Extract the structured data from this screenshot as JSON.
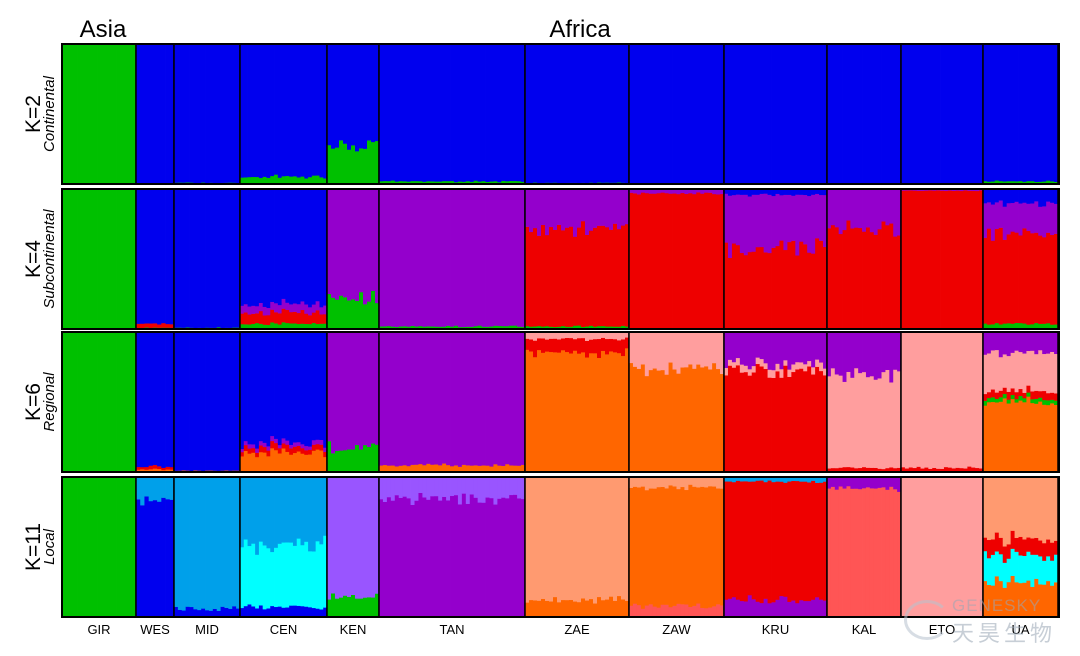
{
  "chart_data": {
    "type": "bar",
    "subtype": "stacked-admixture",
    "region_labels": [
      "Asia",
      "Africa"
    ],
    "populations": [
      {
        "name": "GIR",
        "n": 19
      },
      {
        "name": "WES",
        "n": 9
      },
      {
        "name": "MID",
        "n": 17
      },
      {
        "name": "CEN",
        "n": 23
      },
      {
        "name": "KEN",
        "n": 13
      },
      {
        "name": "TAN",
        "n": 37
      },
      {
        "name": "ZAE",
        "n": 26
      },
      {
        "name": "ZAW",
        "n": 24
      },
      {
        "name": "KRU",
        "n": 26
      },
      {
        "name": "KAL",
        "n": 19
      },
      {
        "name": "ETO",
        "n": 21
      },
      {
        "name": "UA",
        "n": 19
      }
    ],
    "panels": [
      {
        "k_label": "K=2",
        "sub_label": "Continental",
        "components": [
          {
            "GIR": 1.0
          },
          {
            "GIR": 0
          },
          {
            "GIR": 0
          }
        ]
      }
    ],
    "colors": {
      "green": "#00c000",
      "blue": "#0000ee",
      "purple": "#9400cc",
      "red": "#ee0000",
      "orange": "#ff6600",
      "pink": "#ff9e9e",
      "lightblue": "#00a0ea",
      "cyan": "#00ffff",
      "lavender": "#9955ff",
      "salmon": "#ff9a70",
      "coral": "#ff5555"
    },
    "profiles": {
      "K2": {
        "GIR": [
          [
            "green",
            1.0
          ]
        ],
        "WES": [
          [
            "green",
            0.0
          ],
          [
            "blue",
            1.0
          ]
        ],
        "MID": [
          [
            "green",
            0.01
          ],
          [
            "blue",
            0.99
          ]
        ],
        "CEN": [
          [
            "green",
            0.05
          ],
          [
            "blue",
            0.95
          ]
        ],
        "KEN": [
          [
            "green",
            0.28
          ],
          [
            "blue",
            0.72
          ]
        ],
        "TAN": [
          [
            "green",
            0.02
          ],
          [
            "blue",
            0.98
          ]
        ],
        "ZAE": [
          [
            "green",
            0.01
          ],
          [
            "blue",
            0.99
          ]
        ],
        "ZAW": [
          [
            "blue",
            1.0
          ]
        ],
        "KRU": [
          [
            "blue",
            1.0
          ]
        ],
        "KAL": [
          [
            "blue",
            1.0
          ]
        ],
        "ETO": [
          [
            "blue",
            1.0
          ]
        ],
        "UA": [
          [
            "green",
            0.02
          ],
          [
            "blue",
            0.98
          ]
        ]
      },
      "K4": {
        "GIR": [
          [
            "green",
            1.0
          ]
        ],
        "WES": [
          [
            "green",
            0.01
          ],
          [
            "red",
            0.03
          ],
          [
            "blue",
            0.96
          ]
        ],
        "MID": [
          [
            "green",
            0.01
          ],
          [
            "blue",
            0.99
          ]
        ],
        "CEN": [
          [
            "green",
            0.04
          ],
          [
            "red",
            0.08
          ],
          [
            "purple",
            0.06
          ],
          [
            "blue",
            0.82
          ]
        ],
        "KEN": [
          [
            "green",
            0.22
          ],
          [
            "purple",
            0.78
          ]
        ],
        "TAN": [
          [
            "green",
            0.02
          ],
          [
            "purple",
            0.98
          ]
        ],
        "ZAE": [
          [
            "green",
            0.02
          ],
          [
            "red",
            0.7
          ],
          [
            "purple",
            0.28
          ]
        ],
        "ZAW": [
          [
            "red",
            0.97
          ],
          [
            "purple",
            0.03
          ]
        ],
        "KRU": [
          [
            "red",
            0.58
          ],
          [
            "purple",
            0.38
          ],
          [
            "blue",
            0.04
          ]
        ],
        "KAL": [
          [
            "red",
            0.72
          ],
          [
            "purple",
            0.28
          ]
        ],
        "ETO": [
          [
            "red",
            0.99
          ],
          [
            "purple",
            0.01
          ]
        ],
        "UA": [
          [
            "green",
            0.04
          ],
          [
            "red",
            0.64
          ],
          [
            "purple",
            0.22
          ],
          [
            "blue",
            0.1
          ]
        ]
      },
      "K6": {
        "GIR": [
          [
            "green",
            1.0
          ]
        ],
        "WES": [
          [
            "orange",
            0.02
          ],
          [
            "red",
            0.02
          ],
          [
            "blue",
            0.96
          ]
        ],
        "MID": [
          [
            "orange",
            0.01
          ],
          [
            "blue",
            0.99
          ]
        ],
        "CEN": [
          [
            "orange",
            0.14
          ],
          [
            "red",
            0.04
          ],
          [
            "purple",
            0.03
          ],
          [
            "blue",
            0.79
          ]
        ],
        "KEN": [
          [
            "green",
            0.18
          ],
          [
            "purple",
            0.82
          ]
        ],
        "TAN": [
          [
            "orange",
            0.05
          ],
          [
            "purple",
            0.95
          ]
        ],
        "ZAE": [
          [
            "orange",
            0.85
          ],
          [
            "red",
            0.1
          ],
          [
            "pink",
            0.05
          ]
        ],
        "ZAW": [
          [
            "orange",
            0.75
          ],
          [
            "pink",
            0.25
          ]
        ],
        "KRU": [
          [
            "red",
            0.72
          ],
          [
            "pink",
            0.05
          ],
          [
            "purple",
            0.23
          ]
        ],
        "KAL": [
          [
            "red",
            0.03
          ],
          [
            "pink",
            0.67
          ],
          [
            "purple",
            0.3
          ]
        ],
        "ETO": [
          [
            "red",
            0.03
          ],
          [
            "pink",
            0.97
          ]
        ],
        "UA": [
          [
            "orange",
            0.5
          ],
          [
            "green",
            0.03
          ],
          [
            "red",
            0.05
          ],
          [
            "pink",
            0.27
          ],
          [
            "purple",
            0.15
          ]
        ]
      },
      "K11": {
        "GIR": [
          [
            "green",
            1.0
          ]
        ],
        "WES": [
          [
            "blue",
            0.84
          ],
          [
            "lightblue",
            0.16
          ]
        ],
        "MID": [
          [
            "blue",
            0.06
          ],
          [
            "lightblue",
            0.94
          ]
        ],
        "CEN": [
          [
            "blue",
            0.07
          ],
          [
            "cyan",
            0.45
          ],
          [
            "lightblue",
            0.48
          ]
        ],
        "KEN": [
          [
            "green",
            0.15
          ],
          [
            "lavender",
            0.85
          ]
        ],
        "TAN": [
          [
            "purple",
            0.85
          ],
          [
            "lavender",
            0.15
          ]
        ],
        "ZAE": [
          [
            "orange",
            0.12
          ],
          [
            "salmon",
            0.88
          ]
        ],
        "ZAW": [
          [
            "coral",
            0.08
          ],
          [
            "orange",
            0.85
          ],
          [
            "salmon",
            0.07
          ]
        ],
        "KRU": [
          [
            "purple",
            0.12
          ],
          [
            "red",
            0.85
          ],
          [
            "lightblue",
            0.03
          ]
        ],
        "KAL": [
          [
            "coral",
            0.92
          ],
          [
            "purple",
            0.08
          ]
        ],
        "ETO": [
          [
            "pink",
            1.0
          ]
        ],
        "UA": [
          [
            "orange",
            0.25
          ],
          [
            "cyan",
            0.2
          ],
          [
            "red",
            0.12
          ],
          [
            "salmon",
            0.43
          ]
        ]
      }
    },
    "panel_list": [
      {
        "key": "K2",
        "k_label": "K=2",
        "sub_label": "Continental"
      },
      {
        "key": "K4",
        "k_label": "K=4",
        "sub_label": "Subcontinental"
      },
      {
        "key": "K6",
        "k_label": "K=6",
        "sub_label": "Regional"
      },
      {
        "key": "K11",
        "k_label": "K=11",
        "sub_label": "Local"
      }
    ]
  },
  "watermark": {
    "en": "GENESKY",
    "cn": "天昊生物"
  }
}
